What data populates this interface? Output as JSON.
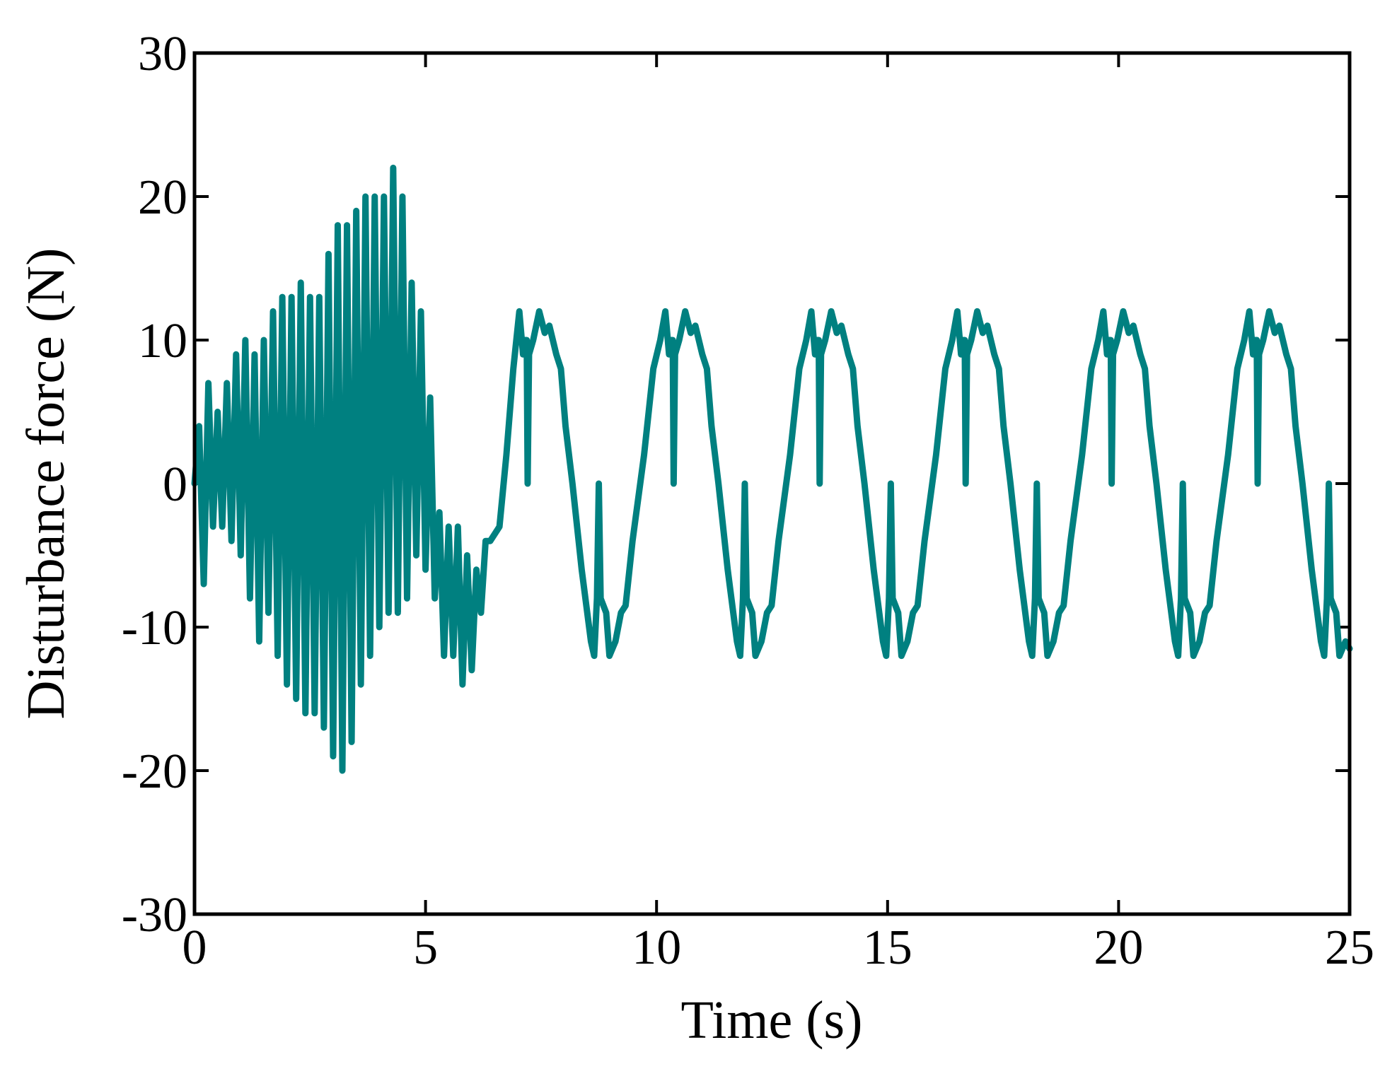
{
  "chart_data": {
    "type": "line",
    "x_label": "Time (s)",
    "y_label": "Disturbance force (N)",
    "xlim": [
      0,
      25
    ],
    "ylim": [
      -30,
      30
    ],
    "xticks": [
      0,
      5,
      10,
      15,
      20,
      25
    ],
    "yticks": [
      -30,
      -20,
      -10,
      0,
      10,
      20,
      30
    ],
    "x": [
      0,
      0.1,
      0.2,
      0.3,
      0.4,
      0.5,
      0.6,
      0.7,
      0.8,
      0.9,
      1.0,
      1.1,
      1.2,
      1.3,
      1.4,
      1.5,
      1.6,
      1.7,
      1.8,
      1.9,
      2.0,
      2.1,
      2.2,
      2.3,
      2.4,
      2.5,
      2.6,
      2.7,
      2.8,
      2.9,
      3.0,
      3.1,
      3.2,
      3.3,
      3.4,
      3.5,
      3.6,
      3.7,
      3.8,
      3.9,
      4.0,
      4.1,
      4.2,
      4.3,
      4.4,
      4.5,
      4.6,
      4.7,
      4.8,
      4.9,
      5.0,
      5.1,
      5.2,
      5.3,
      5.4,
      5.5,
      5.6,
      5.7,
      5.8,
      5.9,
      6.0,
      6.1,
      6.2,
      6.3,
      6.4,
      6.6,
      6.75,
      6.9,
      7.03,
      7.11,
      7.15,
      7.19,
      7.21,
      7.24,
      7.33,
      7.46,
      7.58,
      7.68,
      7.83,
      7.93,
      8.03,
      8.18,
      8.38,
      8.58,
      8.65,
      8.71,
      8.75,
      8.79,
      8.91,
      8.98,
      9.11,
      9.23,
      9.33,
      9.48,
      9.73,
      9.93,
      10.08,
      10.19,
      10.27,
      10.31,
      10.35,
      10.37,
      10.4,
      10.49,
      10.62,
      10.74,
      10.84,
      10.99,
      11.09,
      11.19,
      11.34,
      11.54,
      11.74,
      11.81,
      11.87,
      11.91,
      11.95,
      12.07,
      12.14,
      12.27,
      12.39,
      12.49,
      12.64,
      12.89,
      13.09,
      13.24,
      13.35,
      13.43,
      13.47,
      13.51,
      13.53,
      13.56,
      13.65,
      13.78,
      13.9,
      14.0,
      14.15,
      14.25,
      14.35,
      14.5,
      14.7,
      14.9,
      14.97,
      15.03,
      15.07,
      15.11,
      15.23,
      15.3,
      15.43,
      15.55,
      15.65,
      15.8,
      16.05,
      16.25,
      16.4,
      16.51,
      16.59,
      16.63,
      16.67,
      16.69,
      16.72,
      16.81,
      16.94,
      17.06,
      17.16,
      17.31,
      17.41,
      17.51,
      17.66,
      17.86,
      18.06,
      18.13,
      18.19,
      18.23,
      18.27,
      18.39,
      18.46,
      18.59,
      18.71,
      18.81,
      18.96,
      19.21,
      19.41,
      19.56,
      19.67,
      19.75,
      19.79,
      19.83,
      19.85,
      19.88,
      19.97,
      20.1,
      20.22,
      20.32,
      20.47,
      20.57,
      20.67,
      20.82,
      21.02,
      21.22,
      21.29,
      21.35,
      21.39,
      21.43,
      21.55,
      21.62,
      21.75,
      21.87,
      21.97,
      22.12,
      22.37,
      22.57,
      22.72,
      22.83,
      22.91,
      22.95,
      22.99,
      23.01,
      23.04,
      23.13,
      23.26,
      23.38,
      23.48,
      23.63,
      23.73,
      23.83,
      23.98,
      24.18,
      24.38,
      24.45,
      24.51,
      24.55,
      24.59,
      24.71,
      24.78,
      24.91,
      25.0
    ],
    "series": [
      {
        "color": "#008080",
        "values": [
          0,
          4,
          -7,
          7,
          -3,
          5,
          -3,
          7,
          -4,
          9,
          -5,
          10,
          -8,
          9,
          -11,
          10,
          -9,
          12,
          -12,
          13,
          -14,
          13,
          -15,
          14,
          -16,
          13,
          -16,
          13,
          -17,
          16,
          -19,
          18,
          -20,
          18,
          -18,
          19,
          -14,
          20,
          -12,
          20,
          -10,
          20,
          -9,
          22,
          -9,
          20,
          -8,
          14,
          -5,
          12,
          -6,
          6,
          -8,
          -2,
          -12,
          -3,
          -12,
          -3,
          -14,
          -5,
          -13,
          -6,
          -9,
          -4,
          -4,
          -3,
          2,
          8,
          12,
          9,
          10,
          10,
          0,
          9,
          10,
          12,
          10.5,
          11,
          9,
          8,
          4,
          0,
          -6,
          -11,
          -12,
          -8,
          0,
          -8,
          -9,
          -12,
          -11,
          -9,
          -8.5,
          -4,
          2,
          8,
          10,
          12,
          9,
          10,
          10,
          0,
          9,
          10,
          12,
          10.5,
          11,
          9,
          8,
          4,
          0,
          -6,
          -11,
          -12,
          -8,
          0,
          -8,
          -9,
          -12,
          -11,
          -9,
          -8.5,
          -4,
          2,
          8,
          10,
          12,
          9,
          10,
          10,
          0,
          9,
          10,
          12,
          10.5,
          11,
          9,
          8,
          4,
          0,
          -6,
          -11,
          -12,
          -8,
          0,
          -8,
          -9,
          -12,
          -11,
          -9,
          -8.5,
          -4,
          2,
          8,
          10,
          12,
          9,
          10,
          10,
          0,
          9,
          10,
          12,
          10.5,
          11,
          9,
          8,
          4,
          0,
          -6,
          -11,
          -12,
          -8,
          0,
          -8,
          -9,
          -12,
          -11,
          -9,
          -8.5,
          -4,
          2,
          8,
          10,
          12,
          9,
          10,
          10,
          0,
          9,
          10,
          12,
          10.5,
          11,
          9,
          8,
          4,
          0,
          -6,
          -11,
          -12,
          -8,
          0,
          -8,
          -9,
          -12,
          -11,
          -9,
          -8.5,
          -4,
          2,
          8,
          10,
          12,
          9,
          10,
          10,
          0,
          9,
          10,
          12,
          10.5,
          11,
          9,
          8,
          4,
          0,
          -6,
          -11,
          -12,
          -8,
          0,
          -8,
          -9,
          -12,
          -11,
          -11.5
        ]
      }
    ]
  }
}
